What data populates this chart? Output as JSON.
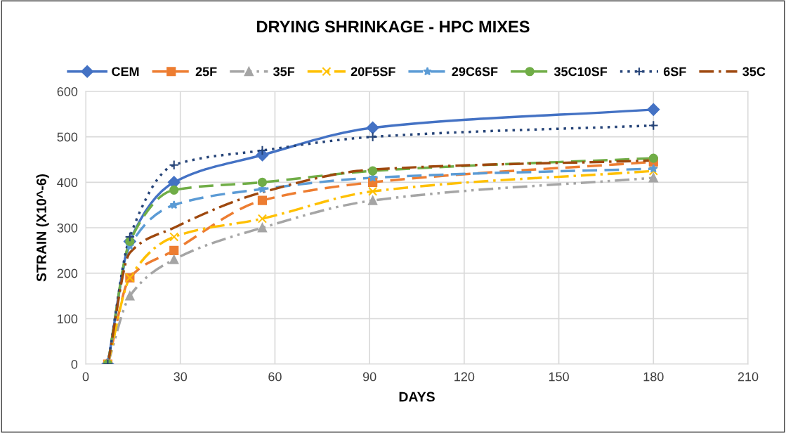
{
  "chart_data": {
    "type": "line",
    "title": "DRYING SHRINKAGE - HPC MIXES",
    "xlabel": "DAYS",
    "ylabel": "STRAIN (X10^-6)",
    "x": [
      7,
      14,
      28,
      56,
      91,
      180
    ],
    "xlim": [
      0,
      210
    ],
    "xticks": [
      0,
      30,
      60,
      90,
      120,
      150,
      180,
      210
    ],
    "ylim": [
      0,
      600
    ],
    "yticks": [
      0,
      100,
      200,
      300,
      400,
      500,
      600
    ],
    "grid": true,
    "legend": "top",
    "series": [
      {
        "name": "CEM",
        "color": "#4472c4",
        "marker": "diamond",
        "line_style": "solid",
        "values": [
          0,
          270,
          400,
          460,
          520,
          560
        ]
      },
      {
        "name": "25F",
        "color": "#ed7d31",
        "marker": "square",
        "line_style": "dashed",
        "values": [
          0,
          190,
          250,
          360,
          400,
          445
        ]
      },
      {
        "name": "35F",
        "color": "#a5a5a5",
        "marker": "triangle",
        "line_style": "dashdotdot",
        "values": [
          0,
          150,
          230,
          300,
          360,
          410
        ]
      },
      {
        "name": "20F5SF",
        "color": "#ffc000",
        "marker": "cross",
        "line_style": "dashdot",
        "values": [
          0,
          190,
          280,
          320,
          380,
          425
        ]
      },
      {
        "name": "29C6SF",
        "color": "#5b9bd5",
        "marker": "star",
        "line_style": "dashed",
        "values": [
          0,
          260,
          350,
          385,
          410,
          430
        ]
      },
      {
        "name": "35C10SF",
        "color": "#70ad47",
        "marker": "circle",
        "line_style": "dashed",
        "values": [
          0,
          270,
          383,
          400,
          425,
          453
        ]
      },
      {
        "name": "6SF",
        "color": "#264478",
        "marker": "plus",
        "line_style": "dotted",
        "values": [
          0,
          280,
          438,
          470,
          500,
          525
        ]
      },
      {
        "name": "35C",
        "color": "#9e480e",
        "marker": "none",
        "line_style": "dashdot",
        "values": [
          0,
          245,
          300,
          378,
          428,
          448
        ]
      }
    ]
  }
}
